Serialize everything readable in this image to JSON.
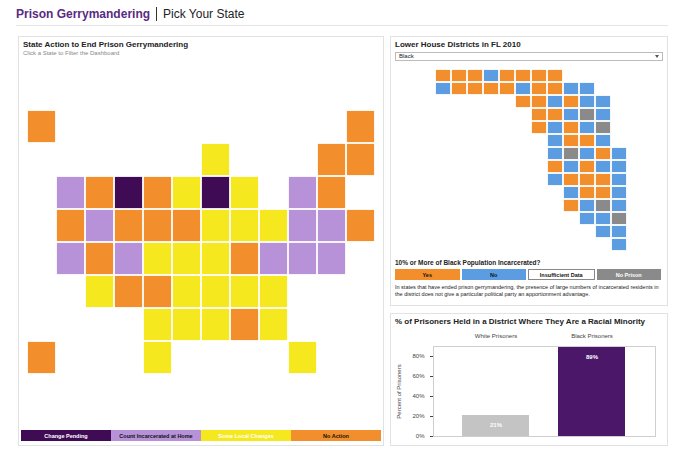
{
  "header": {
    "title": "Prison Gerrymandering",
    "subtitle": "Pick Your State"
  },
  "us_map": {
    "title": "State Action to End Prison Gerrymandering",
    "subtitle": "Click a State to Filter the Dashboard",
    "legend": [
      {
        "label": "Change Pending",
        "color": "#3f0b55"
      },
      {
        "label": "Count Incarcerated at Home",
        "color": "#b792d9"
      },
      {
        "label": "Some Local Changes",
        "color": "#f6e81f"
      },
      {
        "label": "No Action",
        "color": "#f28e2b"
      }
    ],
    "grid": [
      [
        "No Action",
        null,
        null,
        null,
        null,
        null,
        null,
        null,
        null,
        null,
        null,
        "No Action"
      ],
      [
        null,
        null,
        null,
        null,
        null,
        null,
        "Some Local Changes",
        null,
        null,
        null,
        "No Action",
        "No Action"
      ],
      [
        null,
        "Count Incarcerated at Home",
        "No Action",
        "Change Pending",
        "No Action",
        "Some Local Changes",
        "Change Pending",
        "Some Local Changes",
        null,
        "Count Incarcerated at Home",
        "No Action",
        null
      ],
      [
        null,
        "No Action",
        "Count Incarcerated at Home",
        "No Action",
        "No Action",
        "No Action",
        "Some Local Changes",
        "Some Local Changes",
        "Some Local Changes",
        "Count Incarcerated at Home",
        "Count Incarcerated at Home",
        "No Action"
      ],
      [
        null,
        "Count Incarcerated at Home",
        "No Action",
        "Count Incarcerated at Home",
        "Some Local Changes",
        "Some Local Changes",
        "Some Local Changes",
        "No Action",
        "Count Incarcerated at Home",
        "Count Incarcerated at Home",
        "Count Incarcerated at Home",
        null
      ],
      [
        null,
        null,
        "Some Local Changes",
        "No Action",
        "No Action",
        "Some Local Changes",
        "Some Local Changes",
        "Some Local Changes",
        "Some Local Changes",
        null,
        null,
        null
      ],
      [
        null,
        null,
        null,
        null,
        "Some Local Changes",
        "Some Local Changes",
        "Some Local Changes",
        "No Action",
        "Some Local Changes",
        null,
        null,
        null
      ],
      [
        "No Action",
        null,
        null,
        null,
        "Some Local Changes",
        null,
        null,
        null,
        null,
        "Some Local Changes",
        null,
        null
      ]
    ]
  },
  "fl_map": {
    "title": "Lower House Districts in FL 2010",
    "dropdown": "Black",
    "question": "10% or More of Black Population Incarcerated?",
    "legend": [
      {
        "label": "Yes",
        "color": "#f28e2b"
      },
      {
        "label": "No",
        "color": "#5b9de0"
      },
      {
        "label": "Insufficient Data",
        "color": "#ffffff"
      },
      {
        "label": "No Prison",
        "color": "#8a8a8a"
      }
    ],
    "note": "In states that have ended prison gerrymandering, the presence of large numbers of incarcerated residents in the district does not give a particular political party an apportionment advantage.",
    "grid": [
      [
        "Yes",
        "Yes",
        "Yes",
        "No",
        "Yes",
        "Yes",
        "Yes",
        "Yes",
        null,
        null,
        null,
        null
      ],
      [
        "No",
        "Yes",
        "Yes",
        "Yes",
        "Yes",
        "No",
        "Yes",
        "Yes",
        "No",
        "No",
        null,
        null
      ],
      [
        null,
        null,
        null,
        null,
        null,
        "Yes",
        "Yes",
        "No",
        "Yes",
        "No",
        "No",
        null
      ],
      [
        null,
        null,
        null,
        null,
        null,
        null,
        "Yes",
        "Yes",
        "No",
        "No Prison",
        "No",
        null
      ],
      [
        null,
        null,
        null,
        null,
        null,
        null,
        "Yes",
        "No",
        "Yes",
        "No",
        "No Prison",
        null
      ],
      [
        null,
        null,
        null,
        null,
        null,
        null,
        null,
        "No",
        "Yes",
        "Yes",
        "No",
        null
      ],
      [
        null,
        null,
        null,
        null,
        null,
        null,
        null,
        "No",
        "No Prison",
        "No",
        "Yes",
        "No"
      ],
      [
        null,
        null,
        null,
        null,
        null,
        null,
        null,
        "Yes",
        "No",
        "Yes",
        "No",
        "No"
      ],
      [
        null,
        null,
        null,
        null,
        null,
        null,
        null,
        "No",
        "Yes",
        "Yes",
        "Yes",
        "No"
      ],
      [
        null,
        null,
        null,
        null,
        null,
        null,
        null,
        null,
        "No",
        "Yes",
        "Yes",
        "No"
      ],
      [
        null,
        null,
        null,
        null,
        null,
        null,
        null,
        null,
        "Yes",
        "No",
        "No Prison",
        "No"
      ],
      [
        null,
        null,
        null,
        null,
        null,
        null,
        null,
        null,
        null,
        "No",
        "No",
        "No Prison"
      ],
      [
        null,
        null,
        null,
        null,
        null,
        null,
        null,
        null,
        null,
        null,
        "No",
        "No"
      ],
      [
        null,
        null,
        null,
        null,
        null,
        null,
        null,
        null,
        null,
        null,
        null,
        "No"
      ]
    ]
  },
  "chart_data": {
    "type": "bar",
    "title": "% of Prisoners Held in a District Where They Are a Racial Minority",
    "categories": [
      "White Prisoners",
      "Black Prisoners"
    ],
    "values": [
      21,
      89
    ],
    "value_labels": [
      "21%",
      "89%"
    ],
    "colors": [
      "#c4c4c4",
      "#4a1769"
    ],
    "y_label": "Percent of Prisoners",
    "ylim": [
      0,
      90
    ],
    "yticks": [
      {
        "value": 0,
        "label": "0%"
      },
      {
        "value": 20,
        "label": "20%"
      },
      {
        "value": 40,
        "label": "40%"
      },
      {
        "value": 60,
        "label": "60%"
      },
      {
        "value": 80,
        "label": "80%"
      }
    ],
    "data_labels": true,
    "grid": false
  }
}
